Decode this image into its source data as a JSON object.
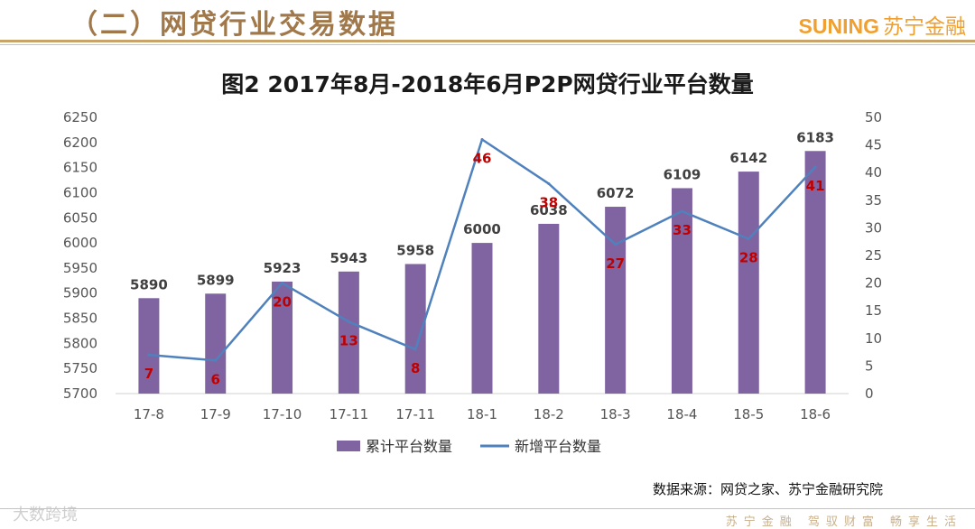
{
  "header": {
    "section_title": "（二）网贷行业交易数据",
    "brand_en": "SUNING",
    "brand_cn": "苏宁金融"
  },
  "chart_data": {
    "type": "bar+line",
    "title": "图2  2017年8月-2018年6月P2P网贷行业平台数量",
    "categories": [
      "17-8",
      "17-9",
      "17-10",
      "17-11",
      "17-11",
      "18-1",
      "18-2",
      "18-3",
      "18-4",
      "18-5",
      "18-6"
    ],
    "series": [
      {
        "name": "累计平台数量",
        "type": "bar",
        "axis": "left",
        "color": "#8064a2",
        "values": [
          5890,
          5899,
          5923,
          5943,
          5958,
          6000,
          6038,
          6072,
          6109,
          6142,
          6183
        ]
      },
      {
        "name": "新增平台数量",
        "type": "line",
        "axis": "right",
        "color": "#4f81bd",
        "label_color": "#c00000",
        "values": [
          7,
          6,
          20,
          13,
          8,
          46,
          38,
          27,
          33,
          28,
          41
        ]
      }
    ],
    "y_left": {
      "min": 5700,
      "max": 6250,
      "step": 50
    },
    "y_right": {
      "min": 0,
      "max": 50,
      "step": 5
    },
    "legend_position": "bottom"
  },
  "footer": {
    "source": "数据来源：网贷之家、苏宁金融研究院",
    "watermark": "大数跨境",
    "slogan": "苏宁金融 驾驭财富 畅享生活"
  }
}
